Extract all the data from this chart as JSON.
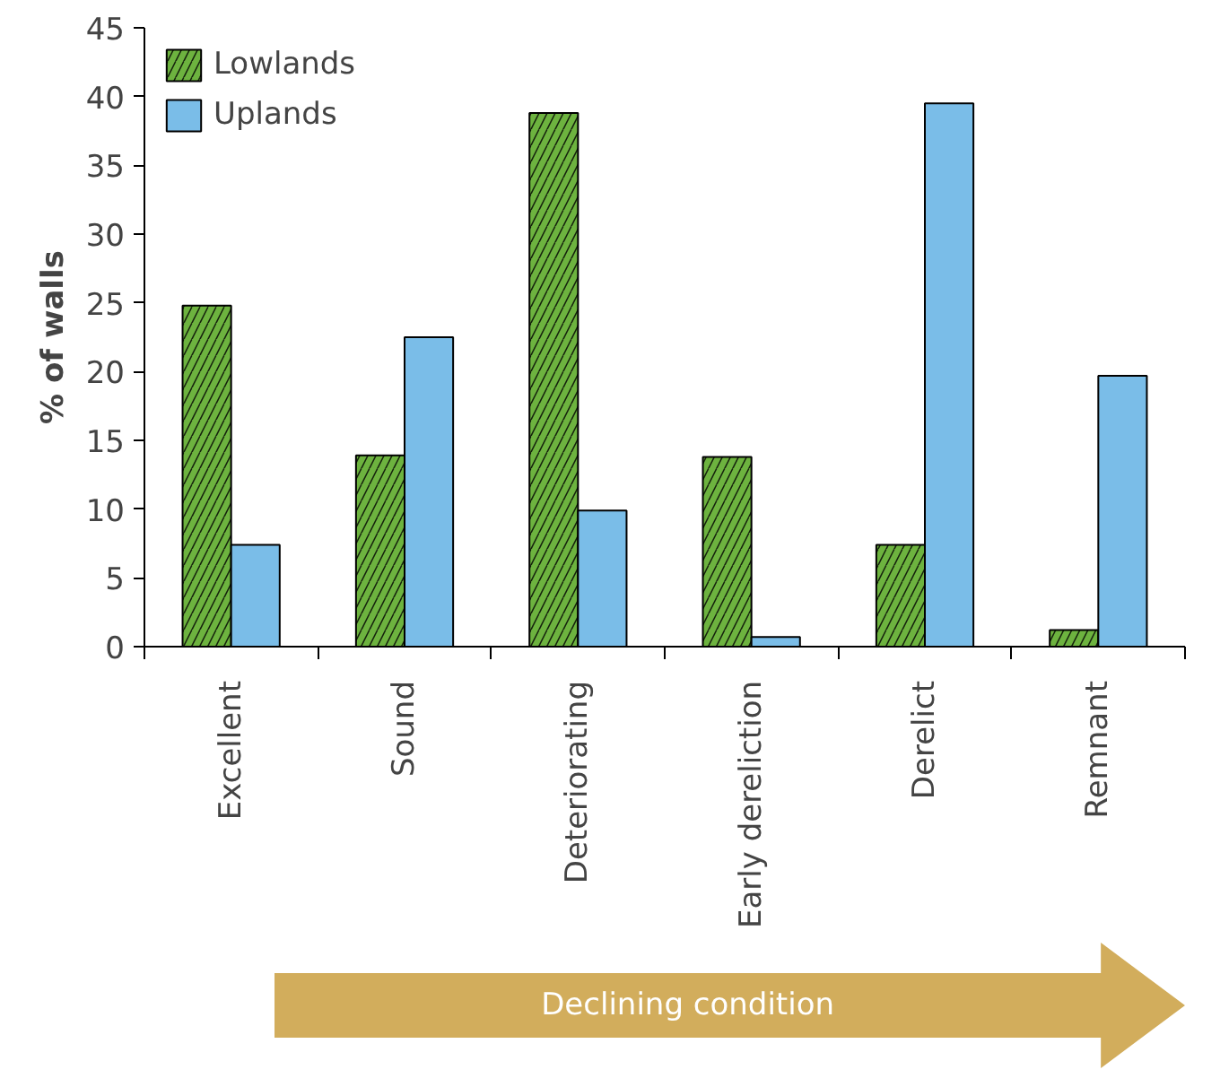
{
  "chart_data": {
    "type": "bar",
    "categories": [
      "Excellent",
      "Sound",
      "Deteriorating",
      "Early dereliction",
      "Derelict",
      "Remnant"
    ],
    "series": [
      {
        "name": "Lowlands",
        "color": "#6db33f",
        "values": [
          24.8,
          13.9,
          38.8,
          13.8,
          7.4,
          1.2
        ]
      },
      {
        "name": "Uplands",
        "color": "#7abde8",
        "values": [
          7.4,
          22.5,
          9.9,
          0.7,
          39.5,
          19.7
        ]
      }
    ],
    "ylabel": "% of walls",
    "ylim": [
      0,
      45
    ],
    "yticks": [
      0,
      5,
      10,
      15,
      20,
      25,
      30,
      35,
      40,
      45
    ],
    "grid": false,
    "legend": "top left",
    "annotations": [
      "Declining condition"
    ]
  }
}
